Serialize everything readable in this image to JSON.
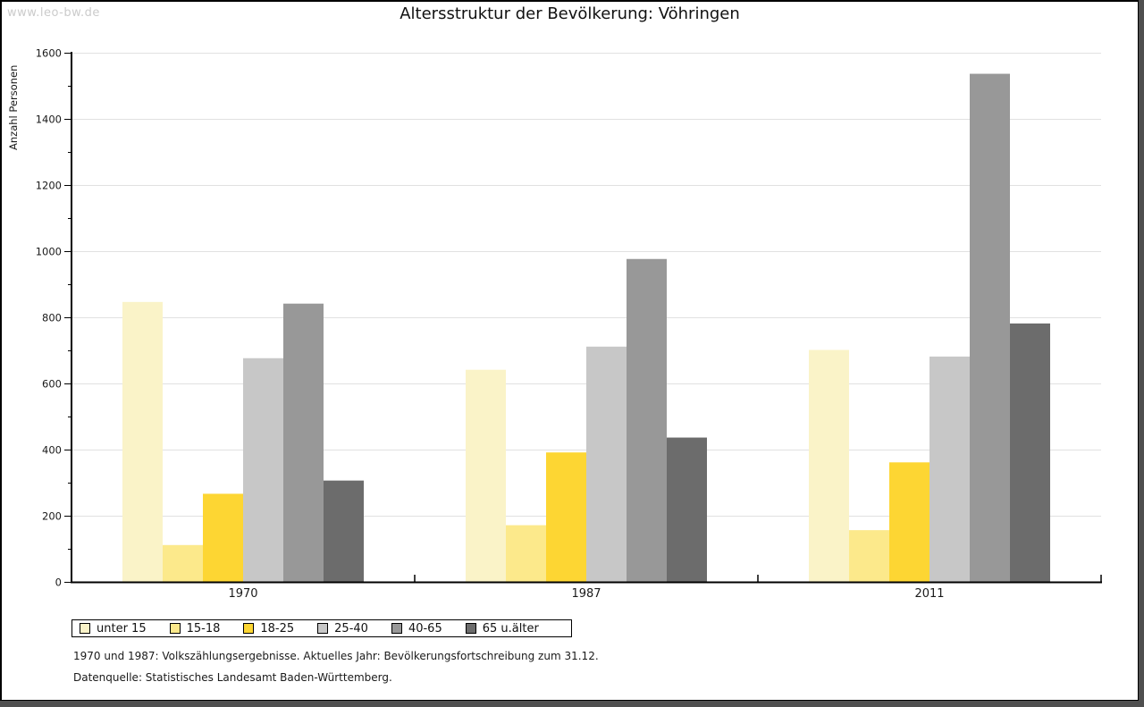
{
  "watermark": "www.leo-bw.de",
  "title": "Altersstruktur der Bevölkerung: Vöhringen",
  "footer": {
    "line1": "1970 und 1987: Volkszählungsergebnisse. Aktuelles Jahr: Bevölkerungsfortschreibung zum 31.12.",
    "line2": "Datenquelle: Statistisches Landesamt Baden-Württemberg."
  },
  "colors": {
    "frame_shadow": "#4f4f4f",
    "grid": "#e1e1e1",
    "axis": "#000000",
    "text": "#1a1a1a",
    "watermark": "#cbcbcb"
  },
  "chart_data": {
    "type": "bar",
    "title": "Altersstruktur der Bevölkerung: Vöhringen",
    "xlabel": "",
    "ylabel": "Anzahl Personen",
    "ylim": [
      0,
      1600
    ],
    "ytick_step": 200,
    "yminor_step": 100,
    "grid": true,
    "legend_position": "bottom",
    "categories": [
      "1970",
      "1987",
      "2011"
    ],
    "series": [
      {
        "name": "unter 15",
        "color": "#faf3c8",
        "values": [
          845,
          640,
          700
        ]
      },
      {
        "name": "15-18",
        "color": "#fce98b",
        "values": [
          110,
          170,
          155
        ]
      },
      {
        "name": "18-25",
        "color": "#fdd633",
        "values": [
          265,
          390,
          360
        ]
      },
      {
        "name": "25-40",
        "color": "#c7c7c7",
        "values": [
          675,
          710,
          680
        ]
      },
      {
        "name": "40-65",
        "color": "#989898",
        "values": [
          840,
          975,
          1535
        ]
      },
      {
        "name": "65 u.älter",
        "color": "#6c6c6c",
        "values": [
          305,
          435,
          780
        ]
      }
    ]
  }
}
